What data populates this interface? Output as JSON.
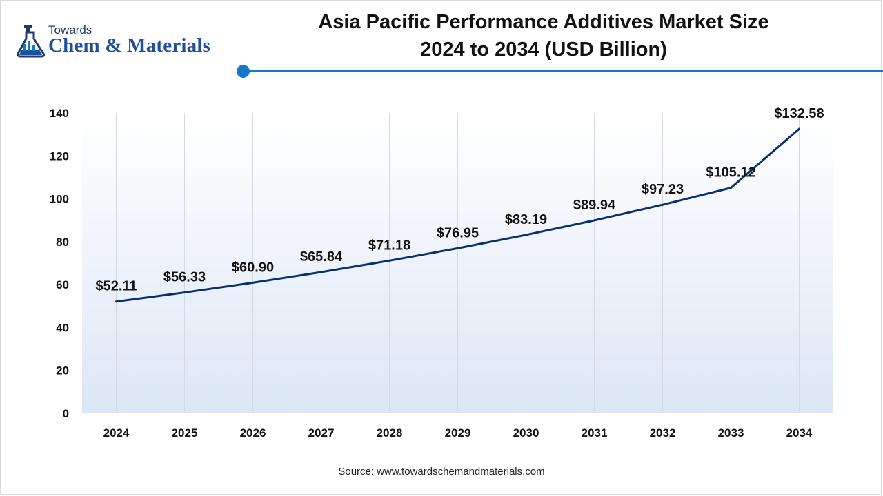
{
  "brand": {
    "line1": "Towards",
    "line2": "Chem & Materials",
    "accent_color": "#1578c8",
    "logo_color": "#1f4f9a"
  },
  "header": {
    "title_line1": "Asia Pacific Performance Additives Market Size",
    "title_line2": "2024 to 2034 (USD Billion)"
  },
  "footer": {
    "source": "Source: www.towardschemandmaterials.com"
  },
  "chart_data": {
    "type": "line",
    "title": "Asia Pacific Performance Additives Market Size 2024 to 2034 (USD Billion)",
    "xlabel": "",
    "ylabel": "",
    "ylim": [
      0,
      140
    ],
    "yticks": [
      0,
      20,
      40,
      60,
      80,
      100,
      120,
      140
    ],
    "grid": "vertical",
    "categories": [
      "2024",
      "2025",
      "2026",
      "2027",
      "2028",
      "2029",
      "2030",
      "2031",
      "2032",
      "2033",
      "2034"
    ],
    "series": [
      {
        "values": [
          52.11,
          56.33,
          60.9,
          65.84,
          71.18,
          76.95,
          83.19,
          89.94,
          97.23,
          105.12,
          132.58
        ],
        "labels": [
          "$52.11",
          "$56.33",
          "$60.90",
          "$65.84",
          "$71.18",
          "$76.95",
          "$83.19",
          "$89.94",
          "$97.23",
          "$105.12",
          "$132.58"
        ],
        "color": "#0d2f6e"
      }
    ],
    "background_gradient": [
      "#ffffff",
      "#dce7f5"
    ]
  }
}
